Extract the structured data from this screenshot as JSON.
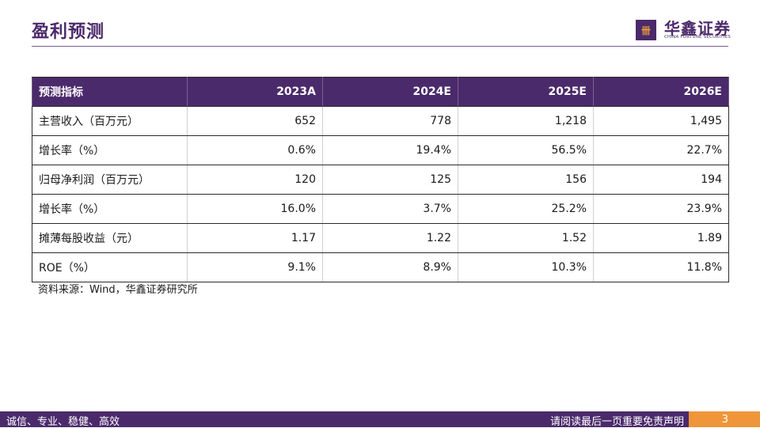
{
  "header": {
    "title": "盈利预测",
    "brand_name": "华鑫证券",
    "brand_en": "CHINA FORTUNE SECURITIES",
    "logo_glyph": "卌"
  },
  "table": {
    "columns": [
      "预测指标",
      "2023A",
      "2024E",
      "2025E",
      "2026E"
    ],
    "rows": [
      [
        "主营收入（百万元）",
        "652",
        "778",
        "1,218",
        "1,495"
      ],
      [
        "增长率（%）",
        "0.6%",
        "19.4%",
        "56.5%",
        "22.7%"
      ],
      [
        "归母净利润（百万元）",
        "120",
        "125",
        "156",
        "194"
      ],
      [
        "增长率（%）",
        "16.0%",
        "3.7%",
        "25.2%",
        "23.9%"
      ],
      [
        "摊薄每股收益（元）",
        "1.17",
        "1.22",
        "1.52",
        "1.89"
      ],
      [
        "ROE（%）",
        "9.1%",
        "8.9%",
        "10.3%",
        "11.8%"
      ]
    ]
  },
  "source": "资料来源：Wind，华鑫证券研究所",
  "footer": {
    "left": "诚信、专业、稳健、高效",
    "right": "请阅读最后一页重要免责声明",
    "page": "3"
  },
  "colors": {
    "brand_purple": "#4b2a6b",
    "accent_orange": "#f0963a"
  }
}
